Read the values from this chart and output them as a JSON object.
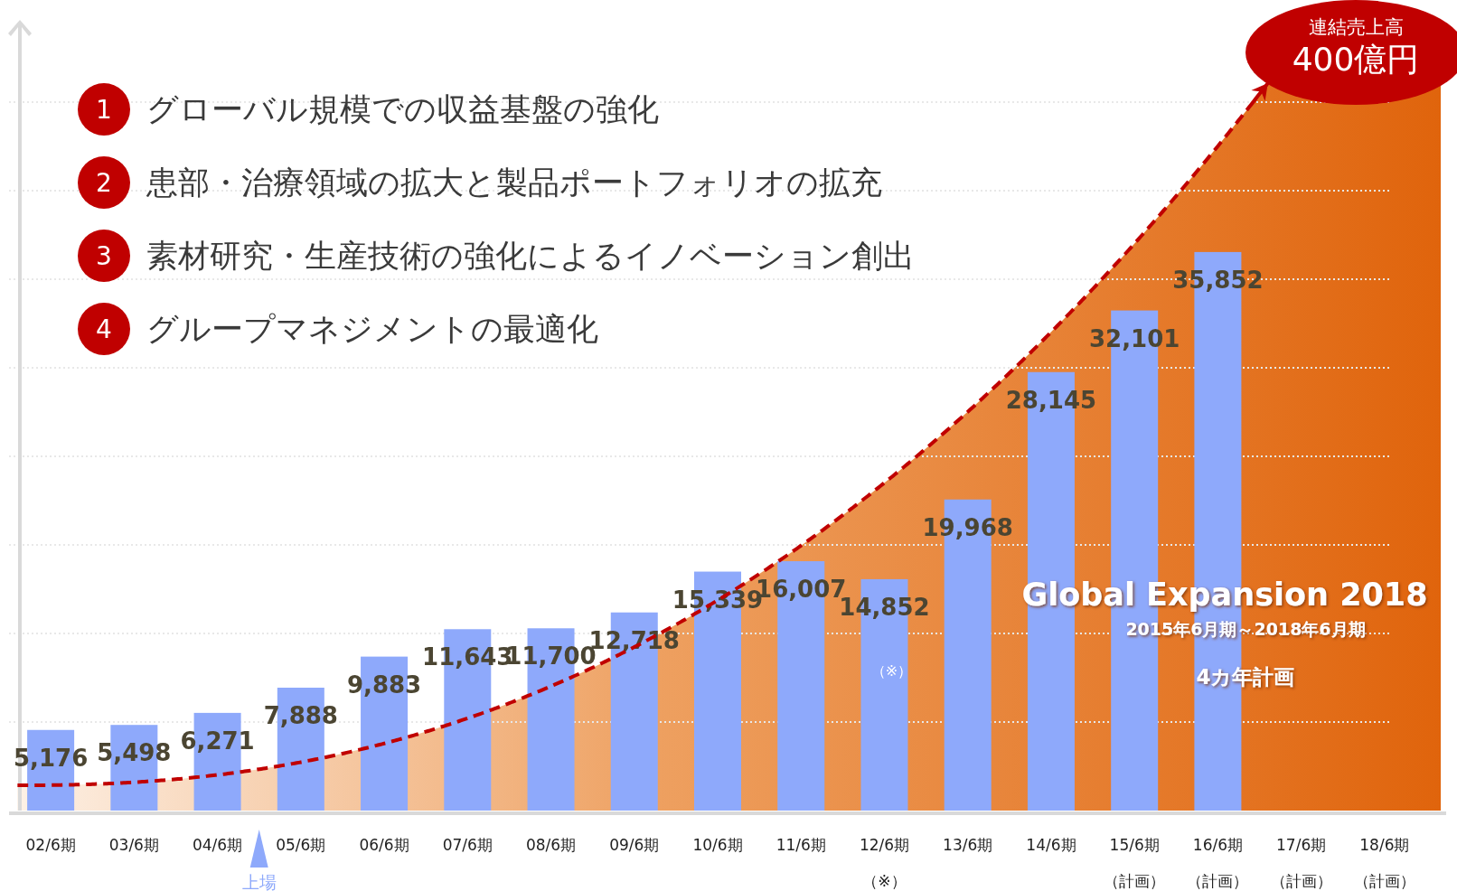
{
  "chart_data": {
    "type": "bar",
    "categories": [
      "02/6期",
      "03/6期",
      "04/6期",
      "05/6期",
      "06/6期",
      "07/6期",
      "08/6期",
      "09/6期",
      "10/6期",
      "11/6期",
      "12/6期（※）",
      "13/6期",
      "14/6期",
      "15/6期（計画）",
      "16/6期（計画）",
      "17/6期（計画）",
      "18/6期（計画）"
    ],
    "values": [
      5176,
      5498,
      6271,
      7888,
      9883,
      11643,
      11700,
      12718,
      15339,
      16007,
      14852,
      19968,
      28145,
      32101,
      35852,
      null,
      null
    ],
    "value_labels": [
      "5,176",
      "5,498",
      "6,271",
      "7,888",
      "9,883",
      "11,643",
      "11,700",
      "12,718",
      "15,339",
      "16,007",
      "14,852",
      "19,968",
      "28,145",
      "32,101",
      "35,852",
      null,
      null
    ],
    "color": "#8ea9fb",
    "grid": "y",
    "tick_labels": "x",
    "annotations": [
      "1",
      "グローバル規模での収益基盤の強化",
      "2",
      "患部・治療領域の拡大と製品ポートフォリオの拡充",
      "3",
      "素材研究・生産技術の強化によるイノベーション創出",
      "4",
      "グループマネジメントの最適化",
      "連結売上高",
      "400億円",
      "Global Expansion 2018",
      "2015年6月期～2018年6月期",
      "4カ年計画",
      "上場",
      "（※）"
    ]
  }
}
